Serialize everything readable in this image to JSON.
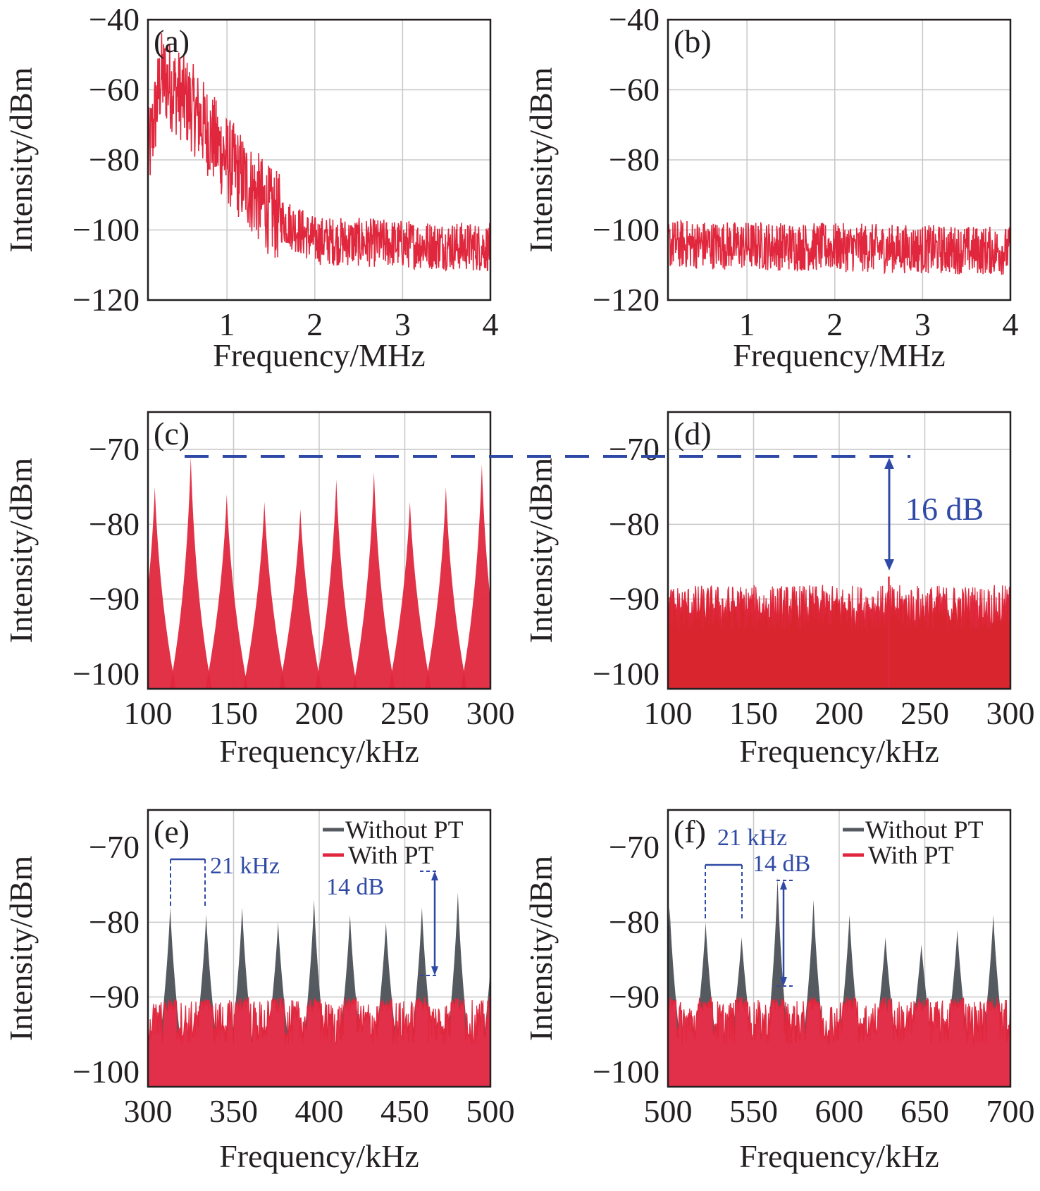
{
  "colors": {
    "with_pt": "#e0273d",
    "without_pt": "#555a60",
    "annotation": "#2f4aa6",
    "grid": "#c8c8c8",
    "axis": "#231f20"
  },
  "legend": {
    "without": "Without PT",
    "with": "With PT"
  },
  "annotations": {
    "dB16": "16 dB",
    "e_khz": "21 kHz",
    "e_db": "14 dB",
    "f_khz": "21 kHz",
    "f_db": "14 dB"
  },
  "chart_data": [
    {
      "id": "a",
      "label": "(a)",
      "type": "line",
      "xlabel": "Frequency/MHz",
      "ylabel": "Intensity/dBm",
      "xlim": [
        0.1,
        4
      ],
      "ylim": [
        -120,
        -40
      ],
      "xticks": [
        1,
        2,
        3,
        4
      ],
      "yticks": [
        -40,
        -60,
        -80,
        -100,
        -120
      ],
      "xgrid": [
        1,
        2,
        3
      ],
      "ygrid": [
        -60,
        -80,
        -100
      ],
      "series": [
        {
          "envelope": [
            [
              0.1,
              -80
            ],
            [
              0.25,
              -56
            ],
            [
              0.6,
              -65
            ],
            [
              1.0,
              -80
            ],
            [
              1.5,
              -95
            ],
            [
              2.0,
              -103
            ],
            [
              4.0,
              -105
            ]
          ]
        }
      ]
    },
    {
      "id": "b",
      "label": "(b)",
      "type": "line",
      "xlabel": "Frequency/MHz",
      "ylabel": "Intensity/dBm",
      "xlim": [
        0.1,
        4
      ],
      "ylim": [
        -120,
        -40
      ],
      "xticks": [
        1,
        2,
        3,
        4
      ],
      "yticks": [
        -40,
        -60,
        -80,
        -100,
        -120
      ],
      "xgrid": [
        1,
        2,
        3
      ],
      "ygrid": [
        -60,
        -80,
        -100
      ],
      "series": [
        {
          "envelope": [
            [
              0.1,
              -104
            ],
            [
              4.0,
              -106
            ]
          ]
        }
      ]
    },
    {
      "id": "c",
      "label": "(c)",
      "type": "area",
      "xlabel": "Frequency/kHz",
      "ylabel": "Intensity/dBm",
      "xlim": [
        100,
        300
      ],
      "ylim": [
        -102,
        -65
      ],
      "xticks": [
        100,
        150,
        200,
        250,
        300
      ],
      "yticks": [
        -70,
        -80,
        -90,
        -100
      ],
      "xgrid": [
        150,
        200,
        250
      ],
      "ygrid": [
        -70,
        -80,
        -90
      ],
      "series": [
        {
          "peaks": [
            [
              104,
              -75
            ],
            [
              125,
              -71
            ],
            [
              146,
              -76
            ],
            [
              168,
              -77
            ],
            [
              189,
              -78
            ],
            [
              210,
              -74
            ],
            [
              232,
              -73
            ],
            [
              253,
              -77
            ],
            [
              274,
              -75
            ],
            [
              295,
              -72
            ]
          ],
          "floor": -101
        }
      ]
    },
    {
      "id": "d",
      "label": "(d)",
      "type": "area",
      "xlabel": "Frequency/kHz",
      "ylabel": "Intensity/dBm",
      "xlim": [
        100,
        300
      ],
      "ylim": [
        -102,
        -65
      ],
      "xticks": [
        100,
        150,
        200,
        250,
        300
      ],
      "yticks": [
        -70,
        -80,
        -90,
        -100
      ],
      "xgrid": [
        150,
        200,
        250
      ],
      "ygrid": [
        -70,
        -80,
        -90
      ],
      "series": [
        {
          "noise_top": -92,
          "spike": [
            229,
            -87
          ]
        }
      ]
    },
    {
      "id": "e",
      "label": "(e)",
      "type": "area",
      "xlabel": "Frequency/kHz",
      "ylabel": "Intensity/dBm",
      "xlim": [
        300,
        500
      ],
      "ylim": [
        -102,
        -65
      ],
      "xticks": [
        300,
        350,
        400,
        450,
        500
      ],
      "yticks": [
        -70,
        -80,
        -90,
        -100
      ],
      "xgrid": [
        350,
        400,
        450
      ],
      "ygrid": [
        -80,
        -90
      ],
      "series": [
        {
          "name": "Without PT",
          "peaks": [
            [
              313,
              -78
            ],
            [
              334,
              -79
            ],
            [
              355,
              -78
            ],
            [
              376,
              -80
            ],
            [
              397,
              -77
            ],
            [
              418,
              -79
            ],
            [
              439,
              -80
            ],
            [
              460,
              -78
            ],
            [
              481,
              -76
            ],
            [
              502,
              -79
            ]
          ]
        },
        {
          "name": "With PT",
          "floor_top": -94
        }
      ]
    },
    {
      "id": "f",
      "label": "(f)",
      "type": "area",
      "xlabel": "Frequency/kHz",
      "ylabel": "Intensity/dBm",
      "xlim": [
        500,
        700
      ],
      "ylim": [
        -102,
        -65
      ],
      "xticks": [
        500,
        550,
        600,
        650,
        700
      ],
      "yticks": [
        -70,
        -80,
        -90,
        -100
      ],
      "xgrid": [
        550,
        600,
        650
      ],
      "ygrid": [
        -80,
        -90
      ],
      "series": [
        {
          "name": "Without PT",
          "peaks": [
            [
              501,
              -78
            ],
            [
              522,
              -80
            ],
            [
              543,
              -82
            ],
            [
              564,
              -74
            ],
            [
              585,
              -77
            ],
            [
              606,
              -79
            ],
            [
              627,
              -82
            ],
            [
              648,
              -83
            ],
            [
              669,
              -81
            ],
            [
              690,
              -79
            ]
          ]
        },
        {
          "name": "With PT",
          "floor_top": -94
        }
      ]
    }
  ]
}
